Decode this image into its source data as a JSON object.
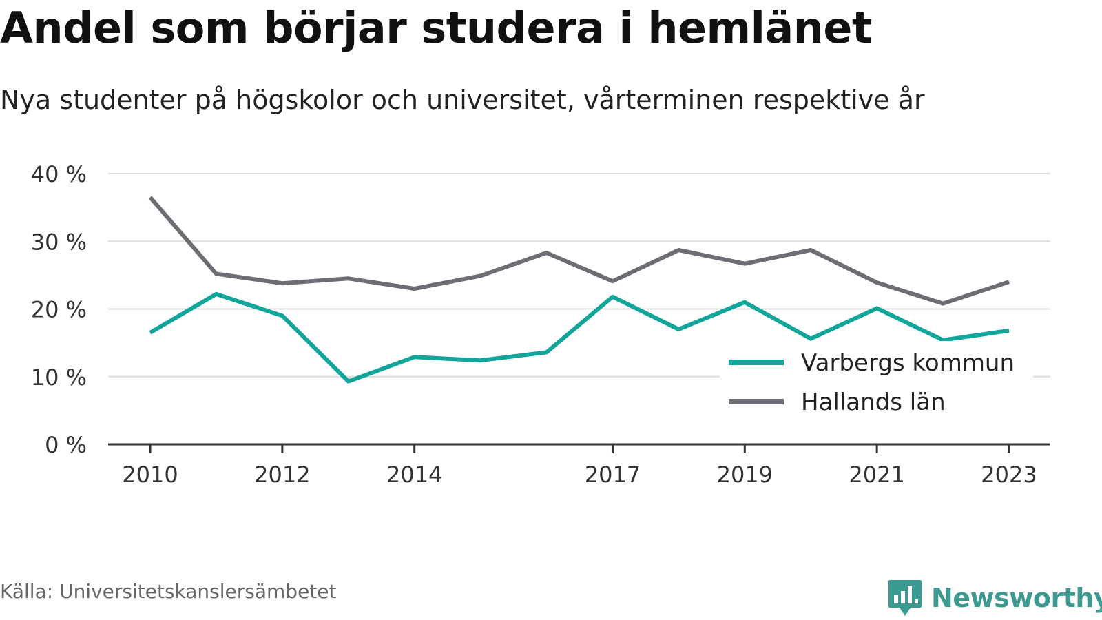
{
  "header": {
    "title": "Andel som börjar studera i hemlänet",
    "subtitle": "Nya studenter på högskolor och universitet, vårterminen respektive år"
  },
  "footer": {
    "source": "Källa: Universitetskanslersämbetet",
    "brand": "Newsworthy"
  },
  "colors": {
    "brand": "#3d9a90",
    "grid": "#dddddd",
    "axis": "#333333"
  },
  "chart_data": {
    "type": "line",
    "x": [
      2010,
      2011,
      2012,
      2013,
      2014,
      2015,
      2016,
      2017,
      2018,
      2019,
      2020,
      2021,
      2022,
      2023
    ],
    "x_tick_labels": [
      "2010",
      "2012",
      "2014",
      "2017",
      "2019",
      "2021",
      "2023"
    ],
    "y_tick_labels": [
      "0 %",
      "10 %",
      "20 %",
      "30 %",
      "40 %"
    ],
    "ylim": [
      0,
      40
    ],
    "grid": true,
    "legend_position": "bottom-right",
    "series": [
      {
        "name": "Varbergs kommun",
        "color": "#12a59a",
        "values": [
          16.5,
          22.2,
          19.0,
          9.3,
          12.9,
          12.4,
          13.6,
          21.8,
          17.0,
          21.0,
          15.6,
          20.1,
          15.4,
          16.8
        ]
      },
      {
        "name": "Hallands län",
        "color": "#6e6d74",
        "values": [
          36.5,
          25.2,
          23.8,
          24.5,
          23.0,
          24.9,
          28.3,
          24.1,
          28.7,
          26.7,
          28.7,
          23.9,
          20.8,
          24.0
        ]
      }
    ]
  }
}
